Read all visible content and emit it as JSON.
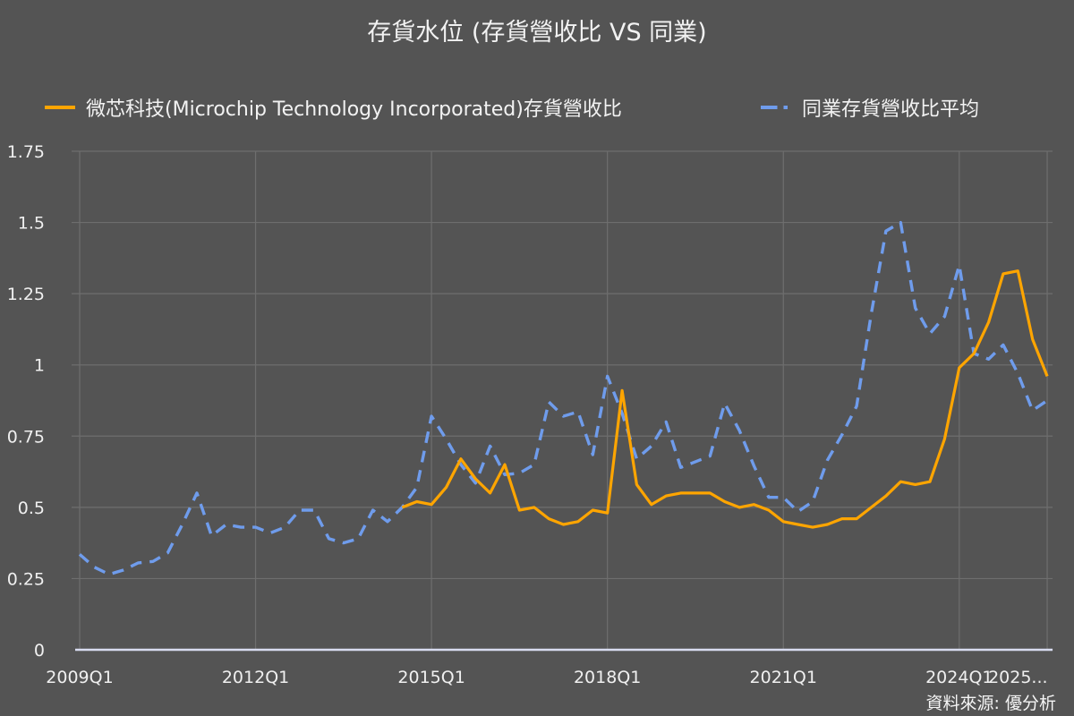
{
  "title": "存貨水位 (存貨營收比 VS 同業)",
  "source": "資料來源: 優分析",
  "legend": [
    {
      "label": "微芯科技(Microchip Technology Incorporated)存貨營收比",
      "color": "#ffa500",
      "style": "solid"
    },
    {
      "label": "同業存貨營收比平均",
      "color": "#6f9cec",
      "style": "dashed"
    }
  ],
  "colors": {
    "background": "#545454",
    "grid": "#6e6e6e",
    "axis": "#d8dcf0",
    "company": "#ffa500",
    "peer": "#6f9cec"
  },
  "chart_data": {
    "type": "line",
    "title": "存貨水位 (存貨營收比 VS 同業)",
    "xlabel": "",
    "ylabel": "",
    "ylim": [
      0,
      1.75
    ],
    "yticks": [
      0,
      0.25,
      0.5,
      0.75,
      1,
      1.25,
      1.5,
      1.75
    ],
    "ytick_labels": [
      "0",
      "0.25",
      "0.5",
      "0.75",
      "1",
      "1.25",
      "1.5",
      "1.75"
    ],
    "xtick_labels": [
      "2009Q1",
      "2012Q1",
      "2015Q1",
      "2018Q1",
      "2021Q1",
      "2024Q1",
      "2025..."
    ],
    "xtick_index": [
      0,
      12,
      24,
      36,
      48,
      60,
      64
    ],
    "grid": true,
    "legend_position": "top",
    "x": [
      "2009Q1",
      "2009Q2",
      "2009Q3",
      "2009Q4",
      "2010Q1",
      "2010Q2",
      "2010Q3",
      "2010Q4",
      "2011Q1",
      "2011Q2",
      "2011Q3",
      "2011Q4",
      "2012Q1",
      "2012Q2",
      "2012Q3",
      "2012Q4",
      "2013Q1",
      "2013Q2",
      "2013Q3",
      "2013Q4",
      "2014Q1",
      "2014Q2",
      "2014Q3",
      "2014Q4",
      "2015Q1",
      "2015Q2",
      "2015Q3",
      "2015Q4",
      "2016Q1",
      "2016Q2",
      "2016Q3",
      "2016Q4",
      "2017Q1",
      "2017Q2",
      "2017Q3",
      "2017Q4",
      "2018Q1",
      "2018Q2",
      "2018Q3",
      "2018Q4",
      "2019Q1",
      "2019Q2",
      "2019Q3",
      "2019Q4",
      "2020Q1",
      "2020Q2",
      "2020Q3",
      "2020Q4",
      "2021Q1",
      "2021Q2",
      "2021Q3",
      "2021Q4",
      "2022Q1",
      "2022Q2",
      "2022Q3",
      "2022Q4",
      "2023Q1",
      "2023Q2",
      "2023Q3",
      "2023Q4",
      "2024Q1",
      "2024Q2",
      "2024Q3",
      "2024Q4",
      "2025Q1",
      "2025Q2",
      "2025Q3"
    ],
    "series": [
      {
        "name": "微芯科技(Microchip Technology Incorporated)存貨營收比",
        "color": "#ffa500",
        "values": [
          null,
          null,
          null,
          null,
          null,
          null,
          null,
          null,
          null,
          null,
          null,
          null,
          null,
          null,
          null,
          null,
          null,
          null,
          null,
          null,
          null,
          null,
          0.5,
          0.52,
          0.51,
          0.57,
          0.67,
          0.6,
          0.55,
          0.65,
          0.49,
          0.5,
          0.46,
          0.44,
          0.45,
          0.49,
          0.48,
          0.91,
          0.58,
          0.51,
          0.54,
          0.55,
          0.55,
          0.55,
          0.52,
          0.5,
          0.51,
          0.49,
          0.45,
          0.44,
          0.43,
          0.44,
          0.46,
          0.46,
          0.5,
          0.54,
          0.59,
          0.58,
          0.59,
          0.74,
          0.99,
          1.04,
          1.15,
          1.32,
          1.33,
          1.09,
          0.96
        ]
      },
      {
        "name": "同業存貨營收比平均",
        "color": "#6f9cec",
        "values": [
          0.335,
          0.29,
          0.265,
          0.28,
          0.305,
          0.31,
          0.34,
          0.44,
          0.55,
          0.4,
          0.44,
          0.43,
          0.43,
          0.41,
          0.43,
          0.49,
          0.49,
          0.39,
          0.375,
          0.39,
          0.49,
          0.45,
          0.5,
          0.57,
          0.82,
          0.74,
          0.65,
          0.585,
          0.715,
          0.615,
          0.62,
          0.65,
          0.87,
          0.82,
          0.835,
          0.685,
          0.96,
          0.83,
          0.67,
          0.715,
          0.8,
          0.64,
          0.66,
          0.68,
          0.865,
          0.77,
          0.645,
          0.535,
          0.535,
          0.485,
          0.52,
          0.665,
          0.755,
          0.855,
          1.18,
          1.47,
          1.5,
          1.2,
          1.11,
          1.17,
          1.35,
          1.04,
          1.02,
          1.07,
          0.97,
          0.84,
          0.875
        ]
      }
    ]
  }
}
